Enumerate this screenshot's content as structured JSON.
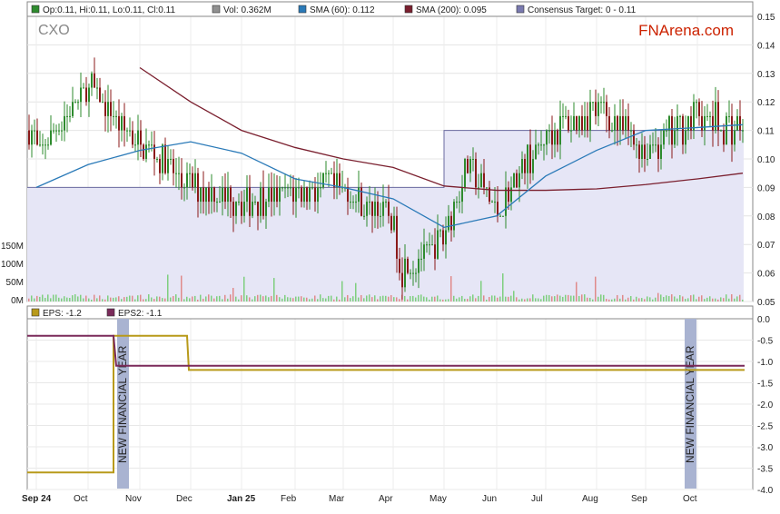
{
  "colors": {
    "up": "#2e8b2e",
    "down": "#8b1a1a",
    "sma60": "#2a7ab8",
    "sma200": "#7a1f2e",
    "target": "#6a6aa0",
    "target_fill": "#e6e6f6",
    "eps": "#b89a1a",
    "eps2": "#7a2a5a",
    "fy_bar": "#a9b3d1",
    "brand": "#cc2200",
    "vol_up": "#7fcf7f",
    "vol_down": "#e08a8a"
  },
  "header": {
    "ohlc": "Op:0.11, Hi:0.11, Lo:0.11, Cl:0.11",
    "vol": "Vol: 0.362M",
    "sma60": "SMA (60): 0.112",
    "sma200": "SMA (200): 0.095",
    "target": "Consensus Target: 0 - 0.11"
  },
  "ticker": "CXO",
  "brand": "FNArena.com",
  "eps_header": {
    "eps": "EPS: -1.2",
    "eps2": "EPS2: -1.1"
  },
  "fy_label": "NEW FINANCIAL YEAR",
  "chart_data": [
    {
      "type": "line",
      "series": [
        {
          "name": "SMA (60)",
          "x": [
            "Sep 24",
            "Oct",
            "Nov",
            "Dec",
            "Jan 25",
            "Feb",
            "Mar",
            "Apr",
            "May",
            "Jun",
            "Jul",
            "Aug",
            "Sep",
            "Oct",
            "Oct end"
          ],
          "values": [
            0.09,
            0.098,
            0.103,
            0.106,
            0.102,
            0.093,
            0.09,
            0.086,
            0.076,
            0.08,
            0.094,
            0.103,
            0.11,
            0.111,
            0.112
          ]
        },
        {
          "name": "SMA (200)",
          "x": [
            "Nov",
            "Dec",
            "Jan 25",
            "Feb",
            "Mar",
            "Apr",
            "May",
            "Jun",
            "Jul",
            "Aug",
            "Sep",
            "Oct",
            "Oct end"
          ],
          "values": [
            0.132,
            0.12,
            0.11,
            0.104,
            0.1,
            0.097,
            0.0905,
            0.089,
            0.089,
            0.0895,
            0.091,
            0.093,
            0.095
          ]
        },
        {
          "name": "Consensus Target",
          "x": [
            "Sep 24",
            "May",
            "May",
            "Oct end"
          ],
          "values": [
            0.09,
            0.09,
            0.11,
            0.11
          ]
        },
        {
          "name": "Price (close, approx.)",
          "x": [
            "Sep 24",
            "Oct",
            "Nov",
            "Dec",
            "Jan 25",
            "Feb",
            "Mar",
            "Apr",
            "Apr",
            "May",
            "May",
            "Jun",
            "Jul",
            "Aug",
            "Sep",
            "Oct",
            "Oct end"
          ],
          "values": [
            0.1,
            0.125,
            0.105,
            0.09,
            0.085,
            0.09,
            0.09,
            0.078,
            0.062,
            0.072,
            0.098,
            0.082,
            0.108,
            0.118,
            0.103,
            0.115,
            0.11
          ]
        }
      ],
      "ylim": [
        0.05,
        0.15
      ],
      "yticks": [
        "0.05",
        "0.06",
        "0.07",
        "0.08",
        "0.09",
        "0.10",
        "0.11",
        "0.12",
        "0.13",
        "0.14",
        "0.15"
      ],
      "vol_ticks": [
        "0M",
        "50M",
        "100M",
        "150M"
      ],
      "grid": true
    },
    {
      "type": "line",
      "series": [
        {
          "name": "EPS",
          "x": [
            "Sep 24",
            "Oct",
            "Oct",
            "Nov",
            "Dec",
            "Dec",
            "Oct end"
          ],
          "values": [
            -3.6,
            -3.6,
            -0.4,
            -0.4,
            -0.4,
            -1.2,
            -1.2
          ]
        },
        {
          "name": "EPS2",
          "x": [
            "Sep 24",
            "Oct",
            "Oct",
            "Oct end"
          ],
          "values": [
            -0.4,
            -0.4,
            -1.1,
            -1.1
          ]
        }
      ],
      "ylim": [
        -4.0,
        0.0
      ],
      "yticks": [
        "0.0",
        "-0.5",
        "-1.0",
        "-1.5",
        "-2.0",
        "-2.5",
        "-3.0",
        "-3.5",
        "-4.0"
      ],
      "grid": true
    }
  ],
  "x_axis": {
    "ticks": [
      "Sep 24",
      "Oct",
      "Nov",
      "Dec",
      "Jan 25",
      "Feb",
      "Mar",
      "Apr",
      "May",
      "Jun",
      "Jul",
      "Aug",
      "Sep",
      "Oct"
    ],
    "bold": [
      "Sep 24",
      "Jan 25"
    ]
  }
}
